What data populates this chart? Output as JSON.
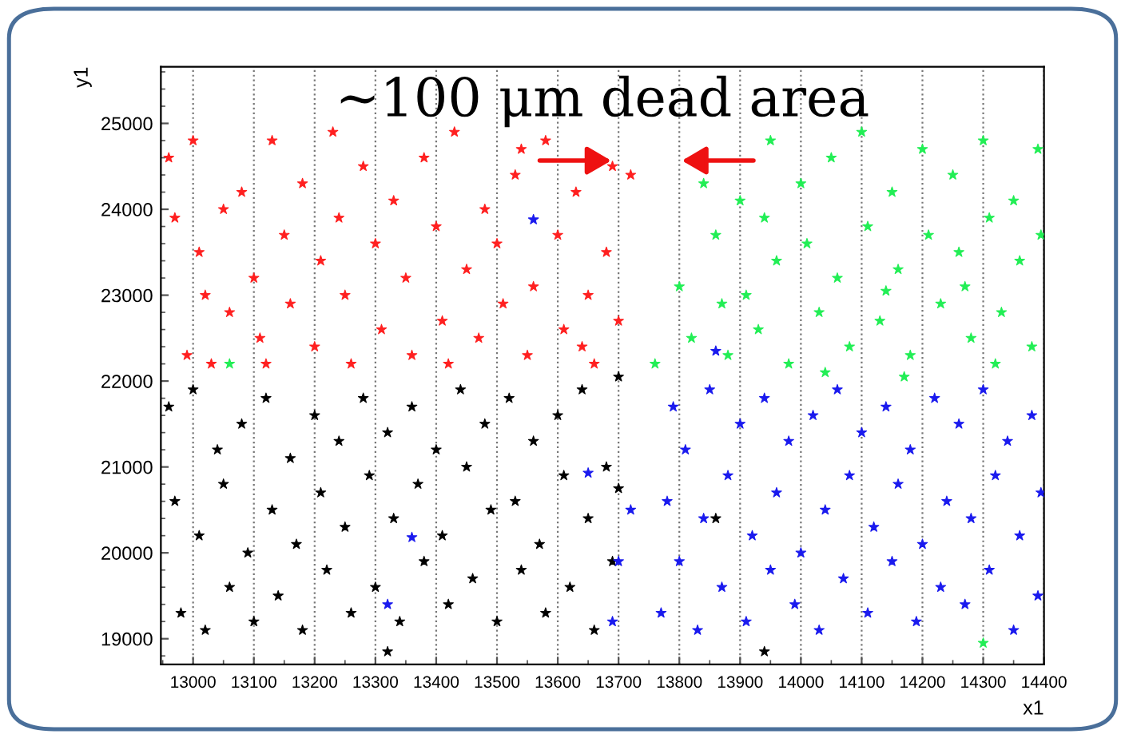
{
  "chart_data": {
    "type": "scatter",
    "xlabel": "x1",
    "ylabel": "y1",
    "xlim": [
      12947,
      14400
    ],
    "ylim": [
      18700,
      25660
    ],
    "xticks": [
      13000,
      13100,
      13200,
      13300,
      13400,
      13500,
      13600,
      13700,
      13800,
      13900,
      14000,
      14100,
      14200,
      14300,
      14400
    ],
    "yticks": [
      19000,
      20000,
      21000,
      22000,
      23000,
      24000,
      25000
    ],
    "grid": "x",
    "marker": "star",
    "annotations": [
      "∼100 μm dead area"
    ],
    "series": [
      {
        "color": "#ff2020",
        "x": [
          12960,
          12970,
          12990,
          13000,
          13010,
          13030,
          13050,
          13060,
          13080,
          13100,
          13110,
          13130,
          13150,
          13160,
          13180,
          13200,
          13210,
          13230,
          13250,
          13260,
          13280,
          13300,
          13310,
          13330,
          13350,
          13360,
          13380,
          13400,
          13410,
          13430,
          13450,
          13470,
          13480,
          13500,
          13510,
          13530,
          13550,
          13560,
          13580,
          13600,
          13610,
          13630,
          13650,
          13660,
          13680,
          13690,
          13700,
          13720,
          13020,
          13240,
          13420,
          13540,
          13640,
          13120
        ],
        "values": [
          24600,
          23900,
          22300,
          24800,
          23500,
          22200,
          24000,
          22800,
          24200,
          23200,
          22500,
          24800,
          23700,
          22900,
          24300,
          22400,
          23400,
          24900,
          23000,
          22200,
          24500,
          23600,
          22600,
          24100,
          23200,
          22300,
          24600,
          23800,
          22700,
          24900,
          23300,
          22500,
          24000,
          23600,
          22900,
          24400,
          22300,
          23100,
          24800,
          23700,
          22600,
          24200,
          23000,
          22200,
          23500,
          24500,
          22700,
          24400,
          23000,
          23900,
          22200,
          24700,
          22400,
          22200
        ]
      },
      {
        "color": "#000000",
        "x": [
          12960,
          12970,
          12980,
          13000,
          13010,
          13020,
          13040,
          13050,
          13060,
          13080,
          13090,
          13100,
          13120,
          13130,
          13140,
          13160,
          13170,
          13180,
          13200,
          13210,
          13220,
          13240,
          13250,
          13260,
          13280,
          13290,
          13300,
          13320,
          13330,
          13340,
          13360,
          13370,
          13380,
          13400,
          13410,
          13420,
          13440,
          13450,
          13460,
          13480,
          13490,
          13500,
          13520,
          13530,
          13540,
          13560,
          13570,
          13580,
          13600,
          13610,
          13620,
          13640,
          13650,
          13660,
          13680,
          13690,
          13700,
          13700,
          13320,
          13940,
          13860
        ],
        "values": [
          21700,
          20600,
          19300,
          21900,
          20200,
          19100,
          21200,
          20800,
          19600,
          21500,
          20000,
          19200,
          21800,
          20500,
          19500,
          21100,
          20100,
          19100,
          21600,
          20700,
          19800,
          21300,
          20300,
          19300,
          21800,
          20900,
          19600,
          21400,
          20400,
          19200,
          21700,
          20800,
          19900,
          21200,
          20200,
          19400,
          21900,
          21000,
          19700,
          21500,
          20500,
          19200,
          21800,
          20600,
          19800,
          21300,
          20100,
          19300,
          21600,
          20900,
          19600,
          21900,
          20400,
          19100,
          21000,
          19900,
          22050,
          20750,
          18850,
          18850,
          20400
        ]
      },
      {
        "color": "#22ee55",
        "x": [
          13760,
          13800,
          13820,
          13840,
          13860,
          13880,
          13900,
          13910,
          13930,
          13950,
          13960,
          13980,
          14000,
          14010,
          14030,
          14050,
          14060,
          14080,
          14100,
          14110,
          14130,
          14150,
          14160,
          14180,
          14200,
          14210,
          14230,
          14250,
          14260,
          14280,
          14300,
          14310,
          14330,
          14350,
          14360,
          14380,
          14390,
          14395,
          13870,
          14040,
          14170,
          14270,
          14320,
          13940,
          14140,
          14300,
          13060
        ],
        "values": [
          22200,
          23100,
          22500,
          24300,
          23700,
          22300,
          24100,
          23000,
          22600,
          24800,
          23400,
          22200,
          24300,
          23600,
          22800,
          24600,
          23200,
          22400,
          24900,
          23800,
          22700,
          24200,
          23300,
          22300,
          24700,
          23700,
          22900,
          24400,
          23500,
          22500,
          24800,
          23900,
          22800,
          24100,
          23400,
          22400,
          24700,
          23700,
          22900,
          22100,
          22050,
          23100,
          22200,
          23900,
          23050,
          18950,
          22200
        ]
      },
      {
        "color": "#1a1aee",
        "x": [
          13770,
          13780,
          13790,
          13800,
          13810,
          13830,
          13840,
          13850,
          13870,
          13880,
          13900,
          13910,
          13920,
          13940,
          13950,
          13960,
          13980,
          13990,
          14000,
          14020,
          14030,
          14040,
          14060,
          14070,
          14080,
          14100,
          14110,
          14120,
          14140,
          14150,
          14160,
          14180,
          14190,
          14200,
          14220,
          14230,
          14240,
          14260,
          14270,
          14280,
          14300,
          14310,
          14320,
          14340,
          14350,
          14360,
          14380,
          14390,
          14395,
          13720,
          13700,
          13690,
          13560,
          13650,
          13360,
          13320,
          13860
        ],
        "values": [
          19300,
          20600,
          21700,
          19900,
          21200,
          19100,
          20400,
          21900,
          19600,
          20900,
          21500,
          19200,
          20200,
          21800,
          19800,
          20700,
          21300,
          19400,
          20000,
          21600,
          19100,
          20500,
          21900,
          19700,
          20900,
          21400,
          19300,
          20300,
          21700,
          19900,
          20800,
          21200,
          19200,
          20100,
          21800,
          19600,
          20600,
          21500,
          19400,
          20400,
          21900,
          19800,
          20900,
          21300,
          19100,
          20200,
          21600,
          19500,
          20700,
          20500,
          19900,
          19200,
          23880,
          20930,
          20180,
          19400,
          22350
        ]
      }
    ]
  }
}
